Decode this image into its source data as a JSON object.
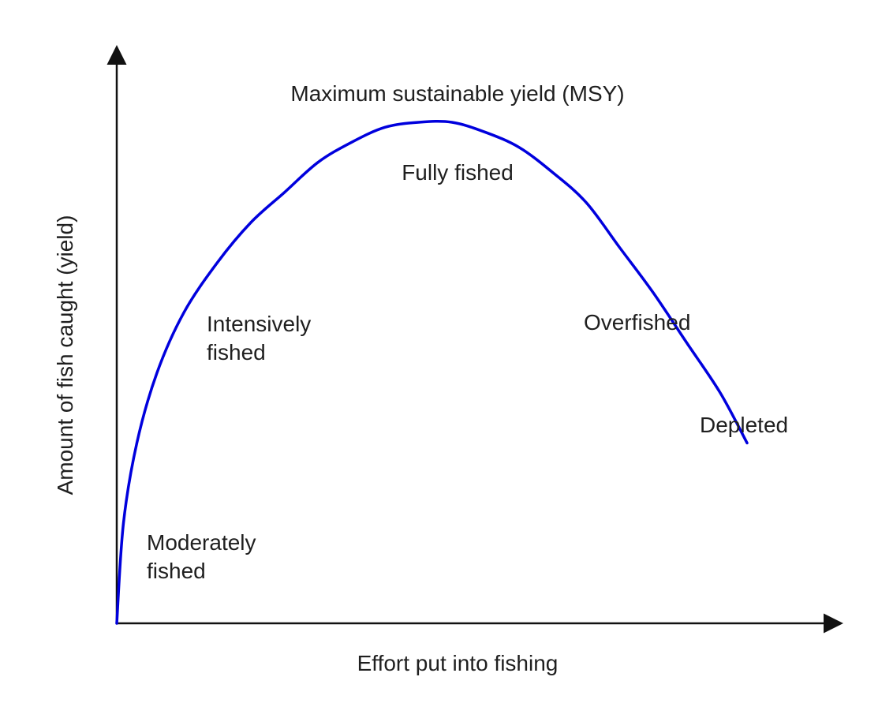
{
  "chart_data": {
    "type": "line",
    "title": "",
    "xlabel": "Effort put into fishing",
    "ylabel": "Amount of fish caught (yield)",
    "xlim": [
      0,
      1
    ],
    "ylim": [
      0,
      1
    ],
    "grid": false,
    "series": [
      {
        "color": "#0000dd",
        "x": [
          0,
          0.01,
          0.03,
          0.06,
          0.1,
          0.15,
          0.2,
          0.25,
          0.3,
          0.35,
          0.4,
          0.45,
          0.5,
          0.55,
          0.6,
          0.65,
          0.7,
          0.75,
          0.8,
          0.85,
          0.9,
          0.94
        ],
        "y": [
          0,
          0.2,
          0.36,
          0.5,
          0.62,
          0.72,
          0.8,
          0.86,
          0.92,
          0.96,
          0.99,
          1.0,
          1.0,
          0.98,
          0.95,
          0.9,
          0.84,
          0.75,
          0.66,
          0.56,
          0.46,
          0.36
        ]
      }
    ],
    "annotations": [
      {
        "id": "msy",
        "lines": [
          "Maximum sustainable yield (MSY)"
        ]
      },
      {
        "id": "fully",
        "lines": [
          "Fully fished"
        ]
      },
      {
        "id": "intensive",
        "lines": [
          "Intensively",
          "fished"
        ]
      },
      {
        "id": "over",
        "lines": [
          "Overfished"
        ]
      },
      {
        "id": "depleted",
        "lines": [
          "Depleted"
        ]
      },
      {
        "id": "moderate",
        "lines": [
          "Moderately",
          "fished"
        ]
      }
    ]
  }
}
